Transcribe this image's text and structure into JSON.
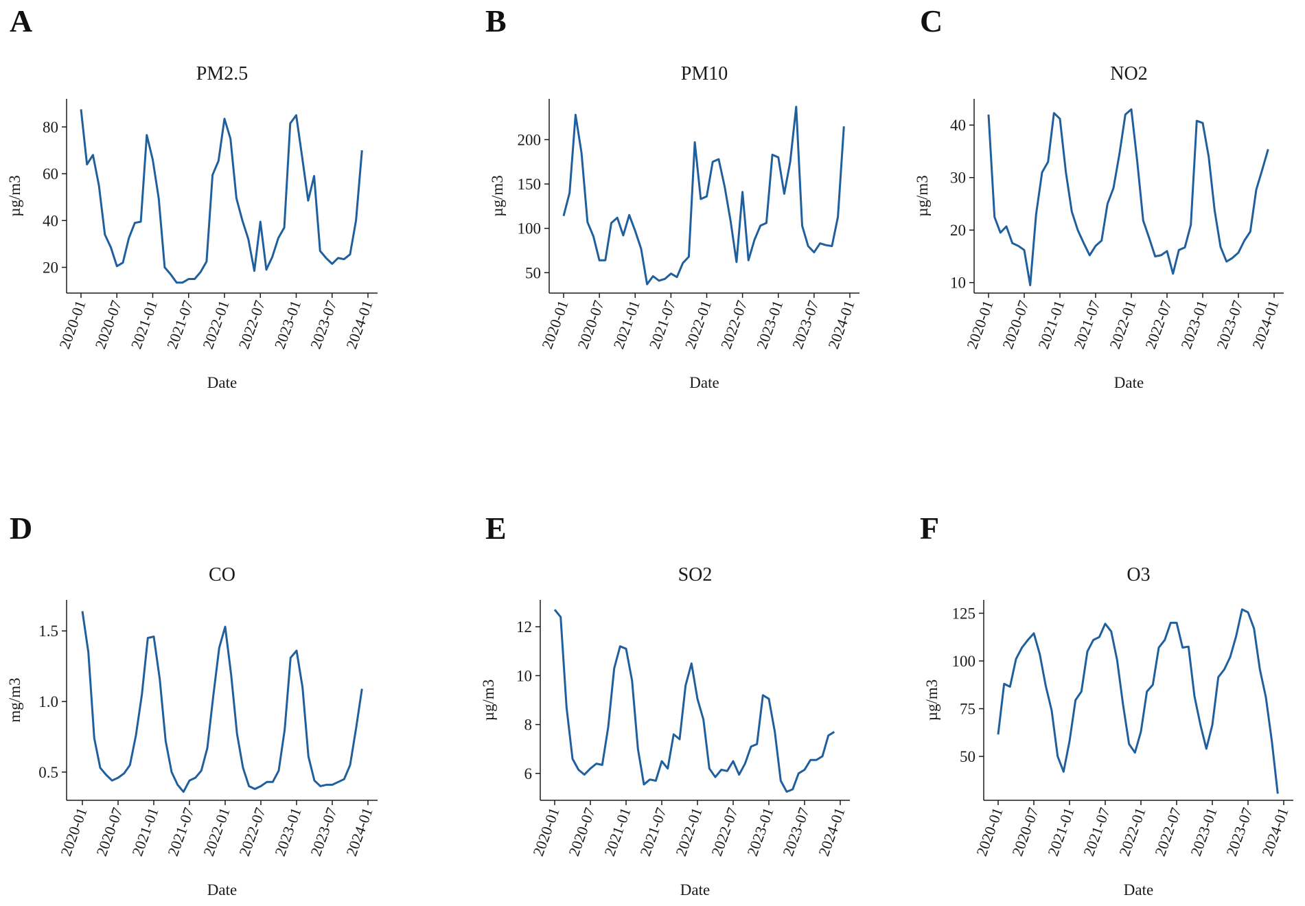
{
  "style": {
    "line_color": "#1f5f9e",
    "axis_color": "#1a1a1a"
  },
  "x_ticks": [
    "2020-01",
    "2020-07",
    "2021-01",
    "2021-07",
    "2022-01",
    "2022-07",
    "2023-01",
    "2023-07",
    "2024-01"
  ],
  "panels": [
    {
      "letter": "A",
      "title": "PM2.5",
      "ylabel": "µg/m3",
      "xlabel": "Date"
    },
    {
      "letter": "B",
      "title": "PM10",
      "ylabel": "µg/m3",
      "xlabel": "Date"
    },
    {
      "letter": "C",
      "title": "NO2",
      "ylabel": "µg/m3",
      "xlabel": "Date"
    },
    {
      "letter": "D",
      "title": "CO",
      "ylabel": "mg/m3",
      "xlabel": "Date"
    },
    {
      "letter": "E",
      "title": "SO2",
      "ylabel": "µg/m3",
      "xlabel": "Date"
    },
    {
      "letter": "F",
      "title": "O3",
      "ylabel": "µg/m3",
      "xlabel": "Date"
    }
  ],
  "chart_data": [
    {
      "type": "line",
      "title": "PM2.5",
      "xlabel": "Date",
      "ylabel": "µg/m3",
      "x_start": "2020-01",
      "x_step": "monthly",
      "ylim": [
        9,
        92
      ],
      "yticks": [
        20,
        40,
        60,
        80
      ],
      "grid": false,
      "values": [
        87.5,
        64,
        68,
        55,
        34,
        28.5,
        20.5,
        22,
        32.5,
        39,
        39.5,
        76.5,
        66,
        49.5,
        20,
        17,
        13.5,
        13.5,
        15,
        15,
        18,
        22.5,
        59.5,
        65.5,
        83.5,
        75,
        49.5,
        40,
        32,
        18.5,
        39.5,
        19,
        24.5,
        32.5,
        37,
        81.5,
        85,
        67,
        48.5,
        59,
        27,
        24,
        21.5,
        24,
        23.5,
        25.5,
        40,
        70
      ]
    },
    {
      "type": "line",
      "title": "PM10",
      "xlabel": "Date",
      "ylabel": "µg/m3",
      "x_start": "2020-01",
      "x_step": "monthly",
      "ylim": [
        27,
        246
      ],
      "yticks": [
        50,
        100,
        150,
        200
      ],
      "grid": false,
      "values": [
        114,
        140,
        228,
        185,
        107,
        91,
        64,
        64,
        106,
        112,
        92,
        115,
        97,
        77,
        37,
        46,
        41,
        43,
        49,
        45,
        61,
        68,
        197,
        133,
        136,
        175,
        178,
        147,
        108,
        62,
        141,
        64,
        87,
        103,
        106,
        183,
        180,
        139,
        175,
        237,
        103,
        80,
        73,
        83,
        81,
        80,
        113,
        215
      ]
    },
    {
      "type": "line",
      "title": "NO2",
      "xlabel": "Date",
      "ylabel": "µg/m3",
      "x_start": "2020-01",
      "x_step": "monthly",
      "ylim": [
        8,
        45
      ],
      "yticks": [
        10,
        20,
        30,
        40
      ],
      "grid": false,
      "values": [
        42,
        22.5,
        19.5,
        20.7,
        17.5,
        17,
        16.2,
        9.5,
        23,
        31,
        33,
        42.3,
        41.2,
        31,
        23.5,
        20,
        17.5,
        15.2,
        17,
        18,
        25,
        28,
        34.5,
        42,
        43,
        33,
        21.8,
        18.5,
        15,
        15.2,
        16,
        11.7,
        16.2,
        16.7,
        21,
        40.8,
        40.4,
        34,
        23.8,
        16.8,
        14,
        14.7,
        15.7,
        18,
        19.7,
        27.7,
        31.5,
        35.4
      ]
    },
    {
      "type": "line",
      "title": "CO",
      "xlabel": "Date",
      "ylabel": "mg/m3",
      "x_start": "2020-01",
      "x_step": "monthly",
      "ylim": [
        0.3,
        1.72
      ],
      "yticks": [
        0.5,
        1.0,
        1.5
      ],
      "grid": false,
      "values": [
        1.64,
        1.35,
        0.74,
        0.53,
        0.48,
        0.44,
        0.46,
        0.49,
        0.55,
        0.76,
        1.05,
        1.45,
        1.46,
        1.16,
        0.72,
        0.5,
        0.41,
        0.36,
        0.44,
        0.46,
        0.51,
        0.67,
        1.04,
        1.38,
        1.53,
        1.19,
        0.77,
        0.53,
        0.4,
        0.38,
        0.4,
        0.43,
        0.43,
        0.51,
        0.8,
        1.31,
        1.36,
        1.1,
        0.61,
        0.44,
        0.4,
        0.41,
        0.41,
        0.43,
        0.45,
        0.55,
        0.81,
        1.09
      ]
    },
    {
      "type": "line",
      "title": "SO2",
      "xlabel": "Date",
      "ylabel": "µg/m3",
      "x_start": "2020-01",
      "x_step": "monthly",
      "ylim": [
        4.9,
        13.1
      ],
      "yticks": [
        6,
        8,
        10,
        12
      ],
      "grid": false,
      "values": [
        12.7,
        12.4,
        8.7,
        6.6,
        6.15,
        5.95,
        6.2,
        6.4,
        6.35,
        7.9,
        10.3,
        11.2,
        11.1,
        9.8,
        7,
        5.55,
        5.75,
        5.7,
        6.5,
        6.2,
        7.6,
        7.4,
        9.6,
        10.5,
        9.05,
        8.2,
        6.2,
        5.85,
        6.15,
        6.1,
        6.5,
        5.95,
        6.4,
        7.1,
        7.2,
        9.2,
        9.05,
        7.7,
        5.7,
        5.25,
        5.35,
        6,
        6.15,
        6.55,
        6.55,
        6.7,
        7.55,
        7.7
      ]
    },
    {
      "type": "line",
      "title": "O3",
      "xlabel": "Date",
      "ylabel": "µg/m3",
      "x_start": "2020-01",
      "x_step": "monthly",
      "ylim": [
        27,
        132
      ],
      "yticks": [
        50,
        75,
        100,
        125
      ],
      "grid": false,
      "values": [
        61.5,
        88,
        86.5,
        101,
        107,
        111,
        114.5,
        103.5,
        87,
        74,
        50,
        42,
        58,
        79.5,
        84,
        105,
        111,
        112.5,
        119.5,
        115.5,
        100.5,
        77,
        56.5,
        52,
        63,
        84,
        87.5,
        107,
        111,
        120,
        120,
        107,
        107.5,
        81.5,
        66.5,
        54,
        66.5,
        91.5,
        95.5,
        102,
        113,
        127,
        125.5,
        117,
        95.5,
        81,
        58,
        30.5
      ]
    }
  ]
}
